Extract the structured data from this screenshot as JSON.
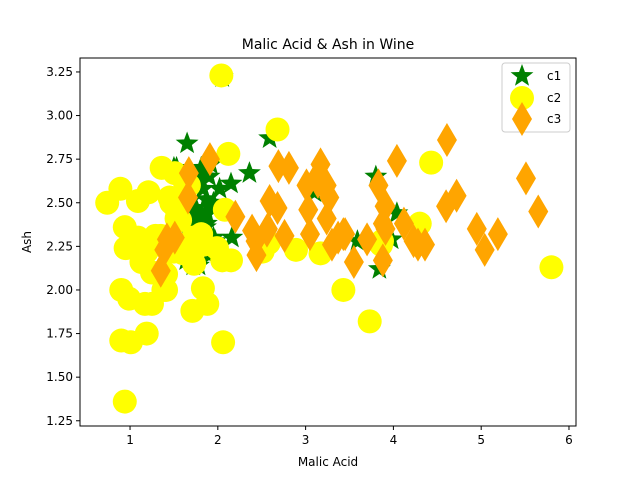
{
  "chart_data": {
    "type": "scatter",
    "title": "Malic Acid & Ash in Wine",
    "xlabel": "Malic Acid",
    "ylabel": "Ash",
    "xlim": [
      0.43,
      6.08
    ],
    "ylim": [
      1.22,
      3.33
    ],
    "xticks": [
      "1",
      "2",
      "3",
      "4",
      "5",
      "6"
    ],
    "yticks": [
      "1.25",
      "1.50",
      "1.75",
      "2.00",
      "2.25",
      "2.50",
      "2.75",
      "3.00",
      "3.25"
    ],
    "grid": false,
    "legend_position": "top-right",
    "series": [
      {
        "name": "c1",
        "marker": "star",
        "color": "#008000",
        "points": [
          [
            1.71,
            2.43
          ],
          [
            1.78,
            2.14
          ],
          [
            2.36,
            2.67
          ],
          [
            1.95,
            2.5
          ],
          [
            2.59,
            2.87
          ],
          [
            1.76,
            2.45
          ],
          [
            1.87,
            2.45
          ],
          [
            2.15,
            2.61
          ],
          [
            1.64,
            2.17
          ],
          [
            1.35,
            2.27
          ],
          [
            2.16,
            2.3
          ],
          [
            1.48,
            2.32
          ],
          [
            1.73,
            2.41
          ],
          [
            1.87,
            2.38
          ],
          [
            1.81,
            2.7
          ],
          [
            1.92,
            2.72
          ],
          [
            1.57,
            2.62
          ],
          [
            1.59,
            2.48
          ],
          [
            3.1,
            2.56
          ],
          [
            1.63,
            2.28
          ],
          [
            3.8,
            2.65
          ],
          [
            1.86,
            2.36
          ],
          [
            1.6,
            2.52
          ],
          [
            2.05,
            3.22
          ],
          [
            1.77,
            2.62
          ],
          [
            1.72,
            2.14
          ],
          [
            1.9,
            2.65
          ],
          [
            1.68,
            2.21
          ],
          [
            1.5,
            2.7
          ],
          [
            1.66,
            2.36
          ],
          [
            1.83,
            2.36
          ],
          [
            1.53,
            2.7
          ],
          [
            1.8,
            2.65
          ],
          [
            1.81,
            2.41
          ],
          [
            1.65,
            2.84
          ],
          [
            3.84,
            2.12
          ],
          [
            1.67,
            2.4
          ],
          [
            3.59,
            2.28
          ],
          [
            1.68,
            2.55
          ],
          [
            1.63,
            2.55
          ],
          [
            4.04,
            2.44
          ],
          [
            1.97,
            2.28
          ],
          [
            1.73,
            2.36
          ],
          [
            1.9,
            2.2
          ],
          [
            1.71,
            2.25
          ],
          [
            1.81,
            2.38
          ],
          [
            1.87,
            2.52
          ],
          [
            2.02,
            2.58
          ],
          [
            3.98,
            2.29
          ],
          [
            1.52,
            2.25
          ],
          [
            1.81,
            2.39
          ],
          [
            1.83,
            2.58
          ],
          [
            1.65,
            2.62
          ],
          [
            1.81,
            2.4
          ],
          [
            1.75,
            2.47
          ],
          [
            1.7,
            2.52
          ],
          [
            1.76,
            2.34
          ],
          [
            1.86,
            2.43
          ],
          [
            1.95,
            2.3
          ]
        ]
      },
      {
        "name": "c2",
        "marker": "circle",
        "color": "#ffff00",
        "points": [
          [
            0.94,
            1.36
          ],
          [
            1.1,
            2.28
          ],
          [
            1.36,
            2.7
          ],
          [
            1.25,
            1.92
          ],
          [
            1.13,
            2.16
          ],
          [
            1.45,
            2.53
          ],
          [
            1.21,
            2.56
          ],
          [
            1.01,
            1.7
          ],
          [
            1.17,
            1.92
          ],
          [
            0.94,
            2.36
          ],
          [
            1.19,
            1.75
          ],
          [
            1.61,
            2.21
          ],
          [
            1.51,
            2.67
          ],
          [
            1.66,
            2.24
          ],
          [
            1.67,
            2.6
          ],
          [
            1.09,
            2.3
          ],
          [
            1.88,
            1.92
          ],
          [
            0.9,
            1.71
          ],
          [
            2.89,
            2.23
          ],
          [
            1.81,
            2.32
          ],
          [
            2.05,
            2.17
          ],
          [
            1.73,
            2.15
          ],
          [
            1.72,
            2.3
          ],
          [
            3.73,
            1.82
          ],
          [
            1.24,
            2.25
          ],
          [
            1.09,
            2.51
          ],
          [
            1.41,
            2.0
          ],
          [
            1.25,
            2.1
          ],
          [
            1.41,
            2.09
          ],
          [
            1.53,
            2.48
          ],
          [
            1.5,
            2.22
          ],
          [
            1.29,
            2.31
          ],
          [
            1.51,
            2.48
          ],
          [
            1.39,
            2.1
          ],
          [
            1.47,
            2.5
          ],
          [
            2.06,
            1.7
          ],
          [
            0.99,
            1.95
          ],
          [
            2.58,
            2.27
          ],
          [
            4.43,
            2.73
          ],
          [
            1.13,
            2.28
          ],
          [
            1.38,
            2.0
          ],
          [
            1.63,
            2.6
          ],
          [
            1.99,
            2.24
          ],
          [
            0.74,
            2.5
          ],
          [
            1.73,
            2.3
          ],
          [
            3.87,
            2.28
          ],
          [
            1.33,
            2.27
          ],
          [
            1.57,
            2.4
          ],
          [
            1.19,
            2.22
          ],
          [
            0.89,
            2.58
          ],
          [
            1.5,
            2.52
          ],
          [
            2.12,
            2.78
          ],
          [
            3.43,
            2.0
          ],
          [
            2.68,
            2.92
          ],
          [
            1.61,
            2.21
          ],
          [
            3.17,
            2.21
          ],
          [
            2.08,
            2.46
          ],
          [
            0.9,
            2.0
          ],
          [
            3.86,
            2.26
          ],
          [
            1.35,
            2.31
          ],
          [
            0.95,
            2.24
          ],
          [
            4.3,
            2.38
          ],
          [
            5.8,
            2.13
          ],
          [
            2.15,
            2.17
          ],
          [
            1.84,
            2.26
          ],
          [
            1.71,
            1.88
          ],
          [
            2.04,
            3.23
          ],
          [
            2.51,
            2.22
          ],
          [
            1.53,
            2.41
          ],
          [
            1.83,
            2.01
          ]
        ]
      },
      {
        "name": "c3",
        "marker": "diamond",
        "color": "#ffa500",
        "points": [
          [
            1.51,
            2.3
          ],
          [
            2.56,
            2.34
          ],
          [
            5.51,
            2.64
          ],
          [
            3.17,
            2.72
          ],
          [
            1.91,
            2.75
          ],
          [
            1.66,
            2.53
          ],
          [
            1.67,
            2.67
          ],
          [
            3.83,
            2.6
          ],
          [
            3.05,
            2.32
          ],
          [
            2.59,
            2.51
          ],
          [
            4.6,
            2.48
          ],
          [
            3.24,
            2.41
          ],
          [
            2.44,
            2.2
          ],
          [
            4.72,
            2.54
          ],
          [
            3.88,
            2.38
          ],
          [
            2.2,
            2.42
          ],
          [
            4.04,
            2.74
          ],
          [
            3.88,
            2.17
          ],
          [
            3.37,
            2.3
          ],
          [
            4.28,
            2.26
          ],
          [
            3.43,
            2.32
          ],
          [
            4.12,
            2.38
          ],
          [
            3.3,
            2.26
          ],
          [
            2.69,
            2.71
          ],
          [
            4.23,
            2.28
          ],
          [
            3.01,
            2.6
          ],
          [
            5.19,
            2.32
          ],
          [
            4.95,
            2.35
          ],
          [
            2.81,
            2.7
          ],
          [
            3.7,
            2.29
          ],
          [
            4.61,
            2.86
          ],
          [
            1.39,
            2.23
          ],
          [
            3.45,
            2.32
          ],
          [
            1.35,
            2.11
          ],
          [
            3.9,
            2.48
          ],
          [
            5.65,
            2.45
          ],
          [
            3.91,
            2.48
          ],
          [
            3.24,
            2.6
          ],
          [
            2.43,
            2.28
          ],
          [
            2.68,
            2.47
          ],
          [
            3.55,
            2.16
          ],
          [
            3.27,
            2.53
          ],
          [
            2.39,
            2.34
          ],
          [
            5.04,
            2.23
          ],
          [
            2.76,
            2.31
          ],
          [
            3.91,
            2.35
          ],
          [
            4.36,
            2.26
          ],
          [
            3.03,
            2.46
          ],
          [
            3.12,
            2.64
          ],
          [
            2.57,
            2.35
          ],
          [
            3.14,
            2.62
          ],
          [
            3.22,
            2.59
          ],
          [
            1.42,
            2.29
          ]
        ]
      }
    ]
  }
}
